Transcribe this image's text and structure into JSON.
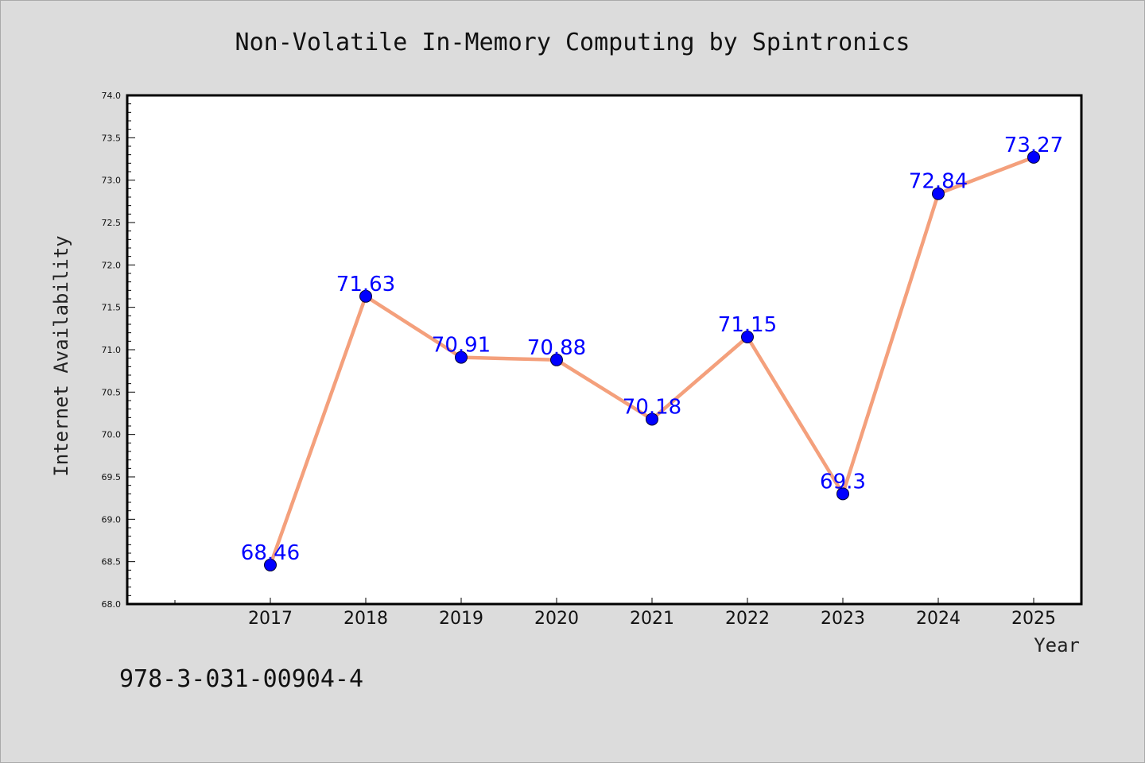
{
  "chart_data": {
    "type": "line",
    "title": "Non-Volatile In-Memory Computing by Spintronics",
    "xlabel": "Year",
    "ylabel": "Internet Availability",
    "categories": [
      "2017",
      "2018",
      "2019",
      "2020",
      "2021",
      "2022",
      "2023",
      "2024",
      "2025"
    ],
    "values": [
      68.46,
      71.63,
      70.91,
      70.88,
      70.18,
      71.15,
      69.3,
      72.84,
      73.27
    ],
    "data_labels": [
      "68.46",
      "71.63",
      "70.91",
      "70.88",
      "70.18",
      "71.15",
      "69.3",
      "72.84",
      "73.27"
    ],
    "ylim": [
      68.0,
      74.0
    ],
    "yticks": [
      "68.0",
      "68.5",
      "69.0",
      "69.5",
      "70.0",
      "70.5",
      "71.0",
      "71.5",
      "72.0",
      "72.5",
      "73.0",
      "73.5",
      "74.0"
    ],
    "grid": false,
    "line_color": "#f4a07c",
    "marker_color": "#0000ff",
    "label_color": "#0000ff",
    "background": "#dcdcdc",
    "plot_background": "#ffffff"
  },
  "footer": {
    "isbn": "978-3-031-00904-4"
  }
}
